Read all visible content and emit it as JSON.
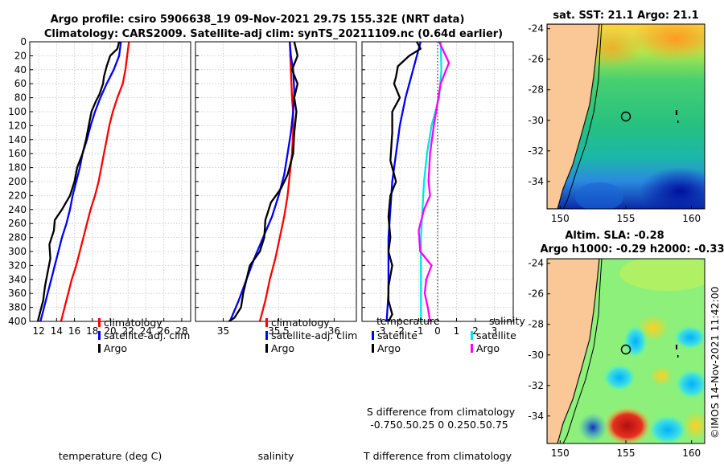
{
  "title": {
    "line1": "Argo profile: csiro 5906638_19 09-Nov-2021 29.7S 155.32E (NRT data)",
    "line2": "Climatology: CARS2009. Satellite-adj clim: synTS_20211109.nc (0.64d earlier)"
  },
  "side_label": "©IMOS 14-Nov-2021 11:42:00",
  "colors": {
    "climatology": "#ff0000",
    "satellite": "#0000ff",
    "argo": "#000000",
    "sal_satellite": "#00e5e5",
    "sal_argo": "#ff00ff",
    "land": "#f9c896",
    "grid": "#c8c8c8"
  },
  "chart_data": [
    {
      "type": "line",
      "title": "",
      "xlabel": "temperature (deg C)",
      "ylabel": "",
      "xlim": [
        11,
        29
      ],
      "ylim": [
        400,
        0
      ],
      "xticks": [
        "12",
        "14",
        "16",
        "18",
        "20",
        "22",
        "24",
        "26",
        "28"
      ],
      "yticks": [
        "0",
        "20",
        "40",
        "60",
        "80",
        "100",
        "120",
        "140",
        "160",
        "180",
        "200",
        "220",
        "240",
        "260",
        "280",
        "300",
        "320",
        "340",
        "360",
        "380",
        "400"
      ],
      "legend": [
        "climatology",
        "satellite-adj. clim",
        "Argo"
      ],
      "legend_position": "lower-right",
      "series": [
        {
          "name": "climatology",
          "color": "#ff0000",
          "points": [
            [
              22.1,
              0
            ],
            [
              21.9,
              20
            ],
            [
              21.7,
              40
            ],
            [
              21.4,
              60
            ],
            [
              20.8,
              80
            ],
            [
              20.3,
              100
            ],
            [
              19.9,
              120
            ],
            [
              19.6,
              140
            ],
            [
              19.3,
              160
            ],
            [
              19.0,
              180
            ],
            [
              18.7,
              200
            ],
            [
              18.3,
              220
            ],
            [
              17.8,
              240
            ],
            [
              17.4,
              260
            ],
            [
              17.0,
              280
            ],
            [
              16.6,
              300
            ],
            [
              16.2,
              320
            ],
            [
              15.7,
              340
            ],
            [
              15.3,
              360
            ],
            [
              14.9,
              380
            ],
            [
              14.5,
              400
            ]
          ]
        },
        {
          "name": "satellite-adj. clim",
          "color": "#0000ff",
          "points": [
            [
              21.2,
              0
            ],
            [
              21.0,
              20
            ],
            [
              20.4,
              40
            ],
            [
              19.6,
              60
            ],
            [
              18.9,
              80
            ],
            [
              18.3,
              100
            ],
            [
              17.8,
              120
            ],
            [
              17.4,
              140
            ],
            [
              16.9,
              160
            ],
            [
              16.6,
              180
            ],
            [
              16.2,
              200
            ],
            [
              15.8,
              220
            ],
            [
              15.5,
              240
            ],
            [
              15.1,
              260
            ],
            [
              14.6,
              280
            ],
            [
              14.2,
              300
            ],
            [
              13.8,
              320
            ],
            [
              13.4,
              340
            ],
            [
              13.0,
              360
            ],
            [
              12.6,
              380
            ],
            [
              12.2,
              400
            ]
          ]
        },
        {
          "name": "Argo",
          "color": "#000000",
          "points": [
            [
              21.0,
              0
            ],
            [
              20.8,
              10
            ],
            [
              20.0,
              20
            ],
            [
              19.6,
              35
            ],
            [
              19.3,
              50
            ],
            [
              19.2,
              60
            ],
            [
              18.8,
              75
            ],
            [
              18.4,
              85
            ],
            [
              17.9,
              100
            ],
            [
              17.6,
              120
            ],
            [
              17.3,
              140
            ],
            [
              16.9,
              160
            ],
            [
              16.3,
              180
            ],
            [
              16.0,
              200
            ],
            [
              15.5,
              220
            ],
            [
              14.6,
              240
            ],
            [
              13.8,
              255
            ],
            [
              13.7,
              270
            ],
            [
              13.2,
              290
            ],
            [
              13.3,
              310
            ],
            [
              13.0,
              330
            ],
            [
              12.7,
              350
            ],
            [
              12.5,
              370
            ],
            [
              12.2,
              385
            ],
            [
              11.9,
              400
            ]
          ]
        }
      ]
    },
    {
      "type": "line",
      "title": "",
      "xlabel": "salinity",
      "ylabel": "",
      "xlim": [
        34.75,
        36.2
      ],
      "ylim": [
        400,
        0
      ],
      "xticks": [
        "35",
        "35.5",
        "36"
      ],
      "legend": [
        "climatology",
        "satellite-adj. clim",
        "Argo"
      ],
      "legend_position": "lower-right",
      "series": [
        {
          "name": "climatology",
          "color": "#ff0000",
          "points": [
            [
              35.6,
              0
            ],
            [
              35.61,
              40
            ],
            [
              35.62,
              80
            ],
            [
              35.63,
              100
            ],
            [
              35.63,
              130
            ],
            [
              35.62,
              160
            ],
            [
              35.6,
              190
            ],
            [
              35.58,
              220
            ],
            [
              35.55,
              250
            ],
            [
              35.51,
              280
            ],
            [
              35.47,
              310
            ],
            [
              35.42,
              340
            ],
            [
              35.38,
              370
            ],
            [
              35.33,
              400
            ]
          ]
        },
        {
          "name": "satellite-adj. clim",
          "color": "#0000ff",
          "points": [
            [
              35.6,
              0
            ],
            [
              35.61,
              20
            ],
            [
              35.63,
              40
            ],
            [
              35.64,
              70
            ],
            [
              35.63,
              100
            ],
            [
              35.61,
              130
            ],
            [
              35.58,
              160
            ],
            [
              35.55,
              190
            ],
            [
              35.5,
              220
            ],
            [
              35.44,
              250
            ],
            [
              35.36,
              280
            ],
            [
              35.28,
              310
            ],
            [
              35.21,
              340
            ],
            [
              35.14,
              370
            ],
            [
              35.06,
              400
            ]
          ]
        },
        {
          "name": "Argo",
          "color": "#000000",
          "points": [
            [
              35.64,
              0
            ],
            [
              35.67,
              20
            ],
            [
              35.62,
              40
            ],
            [
              35.67,
              60
            ],
            [
              35.64,
              80
            ],
            [
              35.66,
              100
            ],
            [
              35.64,
              130
            ],
            [
              35.63,
              160
            ],
            [
              35.58,
              190
            ],
            [
              35.52,
              210
            ],
            [
              35.43,
              230
            ],
            [
              35.38,
              255
            ],
            [
              35.37,
              280
            ],
            [
              35.33,
              300
            ],
            [
              35.24,
              320
            ],
            [
              35.21,
              340
            ],
            [
              35.18,
              360
            ],
            [
              35.16,
              380
            ],
            [
              35.1,
              395
            ],
            [
              35.05,
              400
            ]
          ]
        }
      ]
    },
    {
      "type": "line",
      "title": "",
      "xlabel": "T difference from climatology",
      "xlabel_top": "S difference from climatology",
      "ylabel": "",
      "xlim": [
        -4,
        4
      ],
      "xlim_top": [
        -1,
        1
      ],
      "ylim": [
        400,
        0
      ],
      "xticks": [
        "-3",
        "-2",
        "-1",
        "0",
        "1",
        "2",
        "3"
      ],
      "xticks_top": "-0.750.50.25 0 0.250.50.75",
      "legend_groups": [
        {
          "heading": "temperature",
          "items": [
            "satellite",
            "Argo"
          ]
        },
        {
          "heading": "salinity",
          "items": [
            "satellite",
            "Argo"
          ]
        }
      ],
      "legend_position": "lower-right",
      "series": [
        {
          "name": "temperature satellite",
          "color": "#0000ff",
          "points": [
            [
              -0.9,
              0
            ],
            [
              -1.3,
              40
            ],
            [
              -1.7,
              80
            ],
            [
              -2.0,
              120
            ],
            [
              -2.2,
              160
            ],
            [
              -2.4,
              200
            ],
            [
              -2.5,
              240
            ],
            [
              -2.6,
              280
            ],
            [
              -2.6,
              320
            ],
            [
              -2.6,
              360
            ],
            [
              -2.7,
              400
            ]
          ]
        },
        {
          "name": "temperature Argo",
          "color": "#000000",
          "points": [
            [
              -1.1,
              0
            ],
            [
              -0.9,
              10
            ],
            [
              -1.5,
              20
            ],
            [
              -2.1,
              35
            ],
            [
              -2.2,
              50
            ],
            [
              -2.3,
              60
            ],
            [
              -2.0,
              80
            ],
            [
              -2.4,
              100
            ],
            [
              -2.4,
              130
            ],
            [
              -2.5,
              170
            ],
            [
              -2.2,
              200
            ],
            [
              -2.5,
              220
            ],
            [
              -2.6,
              250
            ],
            [
              -2.5,
              280
            ],
            [
              -2.6,
              300
            ],
            [
              -2.4,
              320
            ],
            [
              -2.6,
              350
            ],
            [
              -2.6,
              370
            ],
            [
              -2.4,
              390
            ],
            [
              -2.6,
              400
            ]
          ]
        },
        {
          "name": "salinity satellite",
          "color": "#00e5e5",
          "points": [
            [
              0.04,
              0
            ],
            [
              0.05,
              40
            ],
            [
              0.02,
              80
            ],
            [
              -0.08,
              120
            ],
            [
              -0.14,
              160
            ],
            [
              -0.18,
              200
            ],
            [
              -0.2,
              240
            ],
            [
              -0.22,
              280
            ],
            [
              -0.22,
              320
            ],
            [
              -0.22,
              360
            ],
            [
              -0.22,
              400
            ]
          ]
        },
        {
          "name": "salinity Argo",
          "color": "#ff00ff",
          "points": [
            [
              0.02,
              0
            ],
            [
              0.15,
              30
            ],
            [
              0.04,
              60
            ],
            [
              0.01,
              80
            ],
            [
              -0.05,
              120
            ],
            [
              -0.1,
              160
            ],
            [
              -0.12,
              200
            ],
            [
              -0.1,
              220
            ],
            [
              -0.18,
              240
            ],
            [
              -0.25,
              270
            ],
            [
              -0.23,
              300
            ],
            [
              -0.08,
              320
            ],
            [
              -0.15,
              340
            ],
            [
              -0.17,
              360
            ],
            [
              -0.13,
              380
            ],
            [
              -0.1,
              400
            ]
          ]
        }
      ]
    },
    {
      "type": "heatmap",
      "title": "sat. SST: 21.1 Argo: 21.1",
      "xlim": [
        149,
        161
      ],
      "ylim": [
        -35.8,
        -23.7
      ],
      "xticks": [
        "150",
        "155",
        "160"
      ],
      "yticks": [
        "-24",
        "-26",
        "-28",
        "-30",
        "-32",
        "-34"
      ],
      "profile_marker": [
        155.32,
        -29.7
      ]
    },
    {
      "type": "heatmap",
      "title": "Altim. SLA: -0.28",
      "subtitle": "Argo h1000: -0.29 h2000: -0.33",
      "xlim": [
        149,
        161
      ],
      "ylim": [
        -35.8,
        -23.7
      ],
      "xticks": [
        "150",
        "155",
        "160"
      ],
      "yticks": [
        "-24",
        "-26",
        "-28",
        "-30",
        "-32",
        "-34"
      ],
      "profile_marker": [
        155.32,
        -29.7
      ]
    }
  ]
}
